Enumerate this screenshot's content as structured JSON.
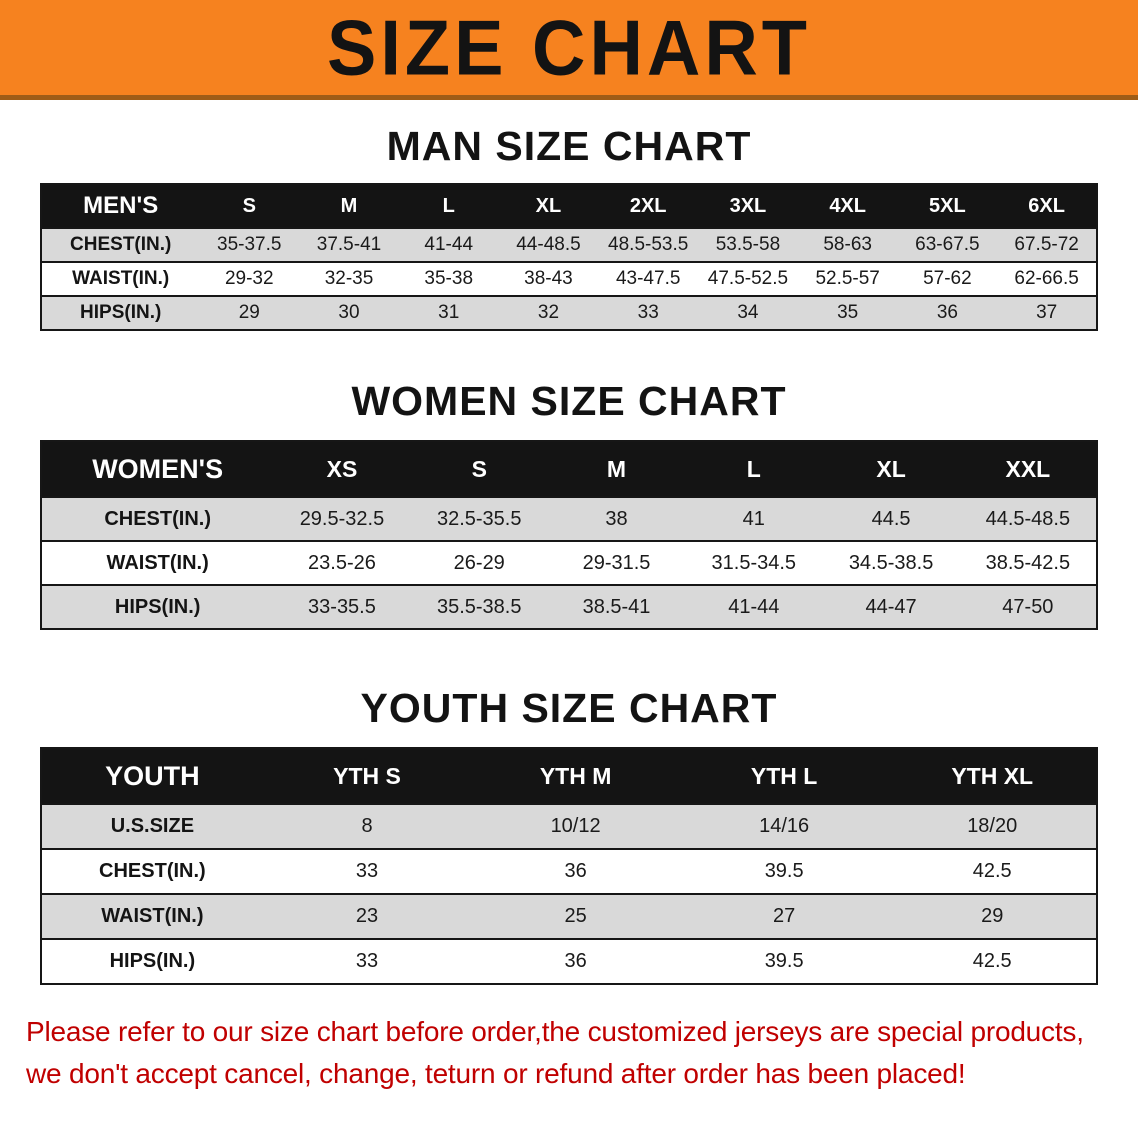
{
  "banner": {
    "title": "SIZE CHART",
    "bg_color": "#F6821F",
    "text_color": "#131313"
  },
  "headings": {
    "men": "MAN SIZE CHART",
    "women": "WOMEN SIZE CHART",
    "youth": "YOUTH SIZE CHART"
  },
  "colors": {
    "header_band": "#141414",
    "row_stripe": "#D9D9D9",
    "disclaimer_red": "#C00000"
  },
  "tables": {
    "men": {
      "header": [
        "MEN'S",
        "S",
        "M",
        "L",
        "XL",
        "2XL",
        "3XL",
        "4XL",
        "5XL",
        "6XL"
      ],
      "rows": [
        [
          "CHEST(IN.)",
          "35-37.5",
          "37.5-41",
          "41-44",
          "44-48.5",
          "48.5-53.5",
          "53.5-58",
          "58-63",
          "63-67.5",
          "67.5-72"
        ],
        [
          "WAIST(IN.)",
          "29-32",
          "32-35",
          "35-38",
          "38-43",
          "43-47.5",
          "47.5-52.5",
          "52.5-57",
          "57-62",
          "62-66.5"
        ],
        [
          "HIPS(IN.)",
          "29",
          "30",
          "31",
          "32",
          "33",
          "34",
          "35",
          "36",
          "37"
        ]
      ]
    },
    "women": {
      "header": [
        "WOMEN'S",
        "XS",
        "S",
        "M",
        "L",
        "XL",
        "XXL"
      ],
      "rows": [
        [
          "CHEST(IN.)",
          "29.5-32.5",
          "32.5-35.5",
          "38",
          "41",
          "44.5",
          "44.5-48.5"
        ],
        [
          "WAIST(IN.)",
          "23.5-26",
          "26-29",
          "29-31.5",
          "31.5-34.5",
          "34.5-38.5",
          "38.5-42.5"
        ],
        [
          "HIPS(IN.)",
          "33-35.5",
          "35.5-38.5",
          "38.5-41",
          "41-44",
          "44-47",
          "47-50"
        ]
      ]
    },
    "youth": {
      "header": [
        "YOUTH",
        "YTH S",
        "YTH M",
        "YTH L",
        "YTH XL"
      ],
      "rows": [
        [
          "U.S.SIZE",
          "8",
          "10/12",
          "14/16",
          "18/20"
        ],
        [
          "CHEST(IN.)",
          "33",
          "36",
          "39.5",
          "42.5"
        ],
        [
          "WAIST(IN.)",
          "23",
          "25",
          "27",
          "29"
        ],
        [
          "HIPS(IN.)",
          "33",
          "36",
          "39.5",
          "42.5"
        ]
      ]
    }
  },
  "disclaimer": {
    "line1": "Please refer to our size chart before order,the customized jerseys are special products,",
    "line2": "we don't accept cancel, change, teturn or refund after order has been placed!",
    "color": "#C00000"
  }
}
